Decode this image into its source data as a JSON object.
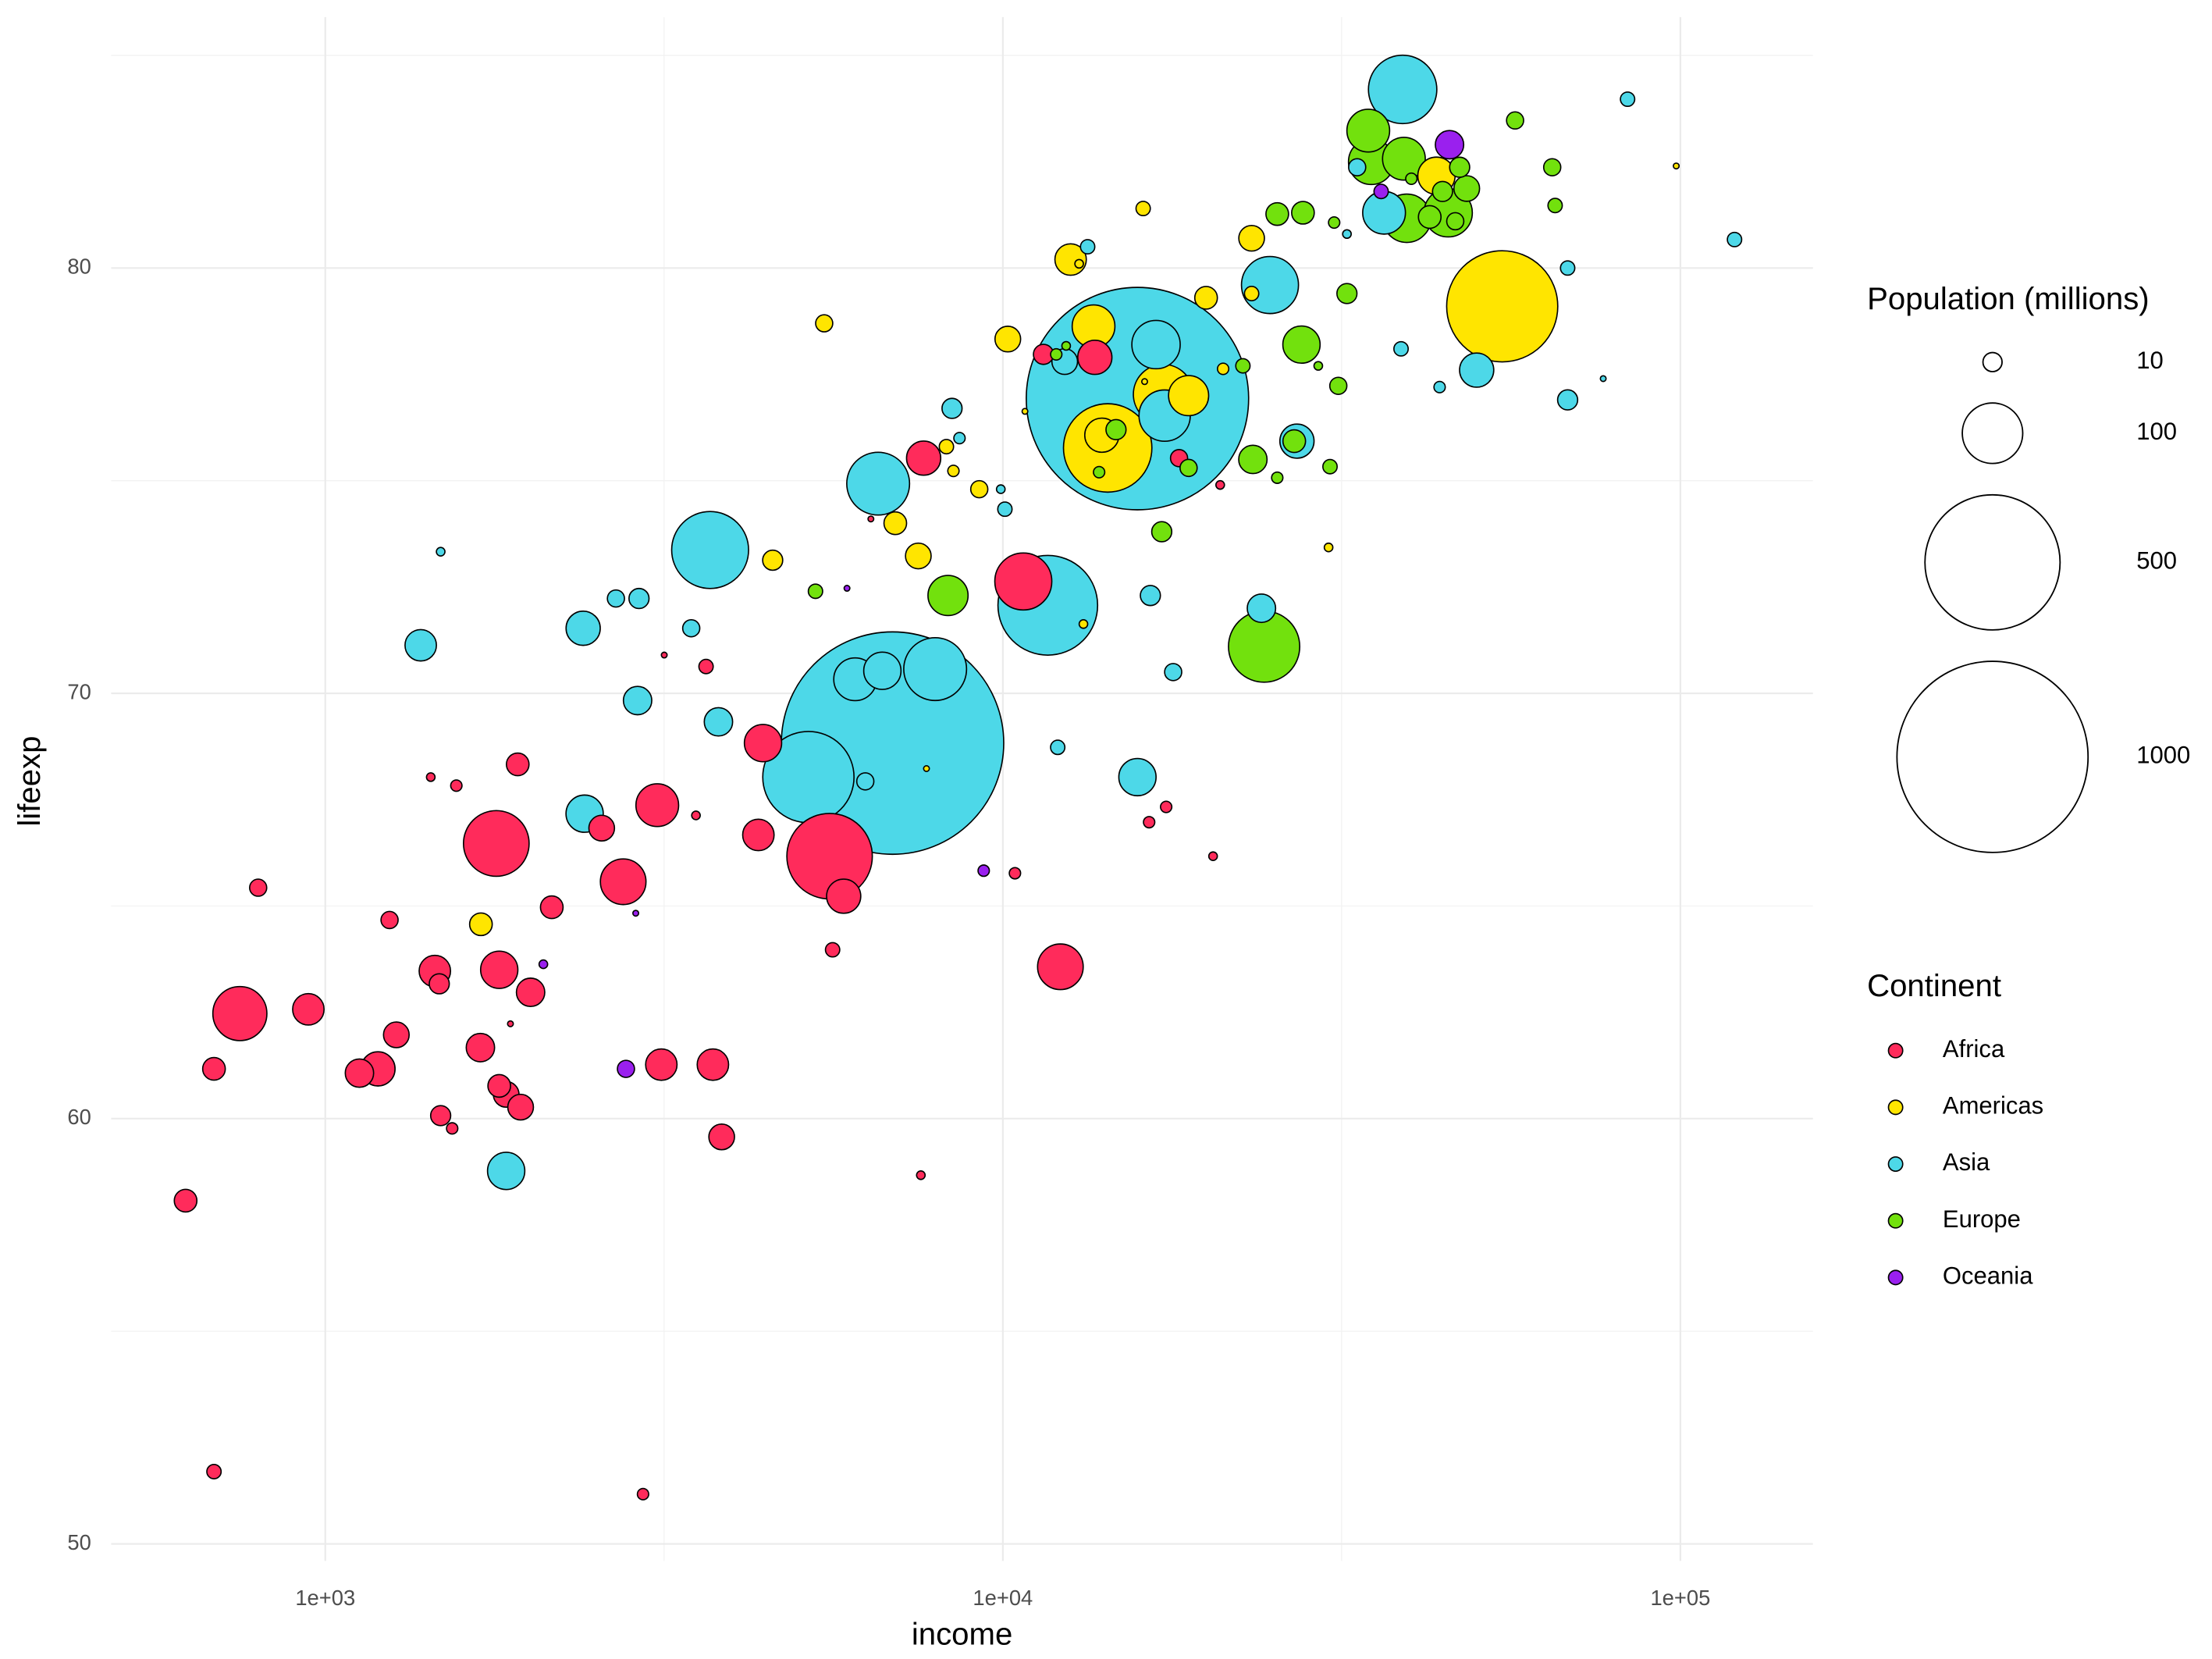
{
  "chart_data": {
    "type": "bubble",
    "x_label": "income",
    "y_label": "lifeexp",
    "x_log": true,
    "xlim": [
      483,
      156900
    ],
    "xticks": [
      {
        "value": 1000,
        "label": "1e+03"
      },
      {
        "value": 10000,
        "label": "1e+04"
      },
      {
        "value": 100000,
        "label": "1e+05"
      }
    ],
    "x_minor_grid": [
      3162,
      31623
    ],
    "ylim": [
      49.6,
      85.9
    ],
    "yticks": [
      50,
      60,
      70,
      80
    ],
    "y_minor_grid": [
      55,
      65,
      75,
      85
    ],
    "grid": true,
    "size_legend": {
      "title": "Population (millions)",
      "breaks": [
        10,
        100,
        500,
        1000
      ]
    },
    "color_legend_title": "Continent",
    "legend_position": "right",
    "series": [
      {
        "name": "Africa",
        "color": "#ff2b5b",
        "x": [
          622,
          685,
          685,
          748,
          796,
          944,
          1123,
          1196,
          1244,
          1273,
          1451,
          1473,
          1431,
          1480,
          1539,
          1561,
          1694,
          1788,
          1806,
          1806,
          1849,
          1876,
          1923,
          1942,
          2009,
          2159,
          2558,
          2752,
          2944,
          3090,
          3133,
          3164,
          3524,
          3647,
          3733,
          3846,
          4357,
          4426,
          5550,
          5607,
          5822,
          6386,
          7568,
          7640,
          10420,
          10720,
          11480,
          12160,
          13670,
          16440,
          17420,
          18200,
          20430,
          20930
        ],
        "values": [
          58.07,
          51.7,
          61.17,
          62.47,
          65.43,
          62.57,
          61.07,
          61.17,
          64.67,
          61.97,
          63.47,
          63.17,
          68.03,
          60.07,
          59.77,
          67.83,
          61.67,
          66.47,
          60.77,
          63.5,
          60.57,
          62.23,
          68.33,
          60.27,
          62.97,
          64.97,
          66.83,
          65.57,
          51.17,
          67.37,
          61.27,
          70.9,
          67.13,
          70.63,
          61.27,
          59.57,
          66.67,
          68.83,
          66.17,
          63.97,
          65.23,
          74.1,
          58.67,
          75.53,
          65.77,
          72.63,
          77.97,
          63.57,
          77.9,
          66.97,
          67.33,
          75.53,
          66.17,
          74.9
        ],
        "sizes": [
          14,
          5.6,
          14,
          80,
          8,
          27,
          22,
          32,
          8,
          18,
          27,
          11,
          2,
          11,
          3.5,
          3.5,
          22,
          118,
          14,
          38,
          18,
          0.9,
          14,
          18,
          22,
          14,
          18,
          57,
          3.5,
          50,
          27,
          0.9,
          2,
          5.6,
          27,
          18,
          27,
          38,
          200,
          5.6,
          32,
          0.9,
          2,
          32,
          3.5,
          89,
          11,
          57,
          32,
          3.5,
          3.5,
          8,
          2,
          2
        ]
      },
      {
        "name": "Americas",
        "color": "#ffe500",
        "x": [
          1697,
          4574,
          5449,
          6938,
          7503,
          7714,
          8255,
          8454,
          9230,
          10170,
          10780,
          12590,
          12960,
          13150,
          13610,
          14280,
          14000,
          16190,
          17250,
          18800,
          16110,
          19950,
          21140,
          23290,
          23290,
          30250,
          43650,
          54580,
          98600
        ],
        "values": [
          64.57,
          73.13,
          78.7,
          74.0,
          73.23,
          68.23,
          75.8,
          75.23,
          74.8,
          78.33,
          76.63,
          80.2,
          80.1,
          71.63,
          78.63,
          75.77,
          76.07,
          77.33,
          77.03,
          77.0,
          81.4,
          79.3,
          77.63,
          80.7,
          79.4,
          73.43,
          82.17,
          79.1,
          82.4
        ],
        "sizes": [
          14,
          11,
          8,
          14,
          18,
          0.9,
          5.6,
          3.5,
          8,
          18,
          0.9,
          27,
          2,
          2,
          50,
          214,
          32,
          0.9,
          98,
          44,
          5.6,
          14,
          3.5,
          18,
          5.6,
          2,
          38,
          338,
          0.9
        ]
      },
      {
        "name": "Asia",
        "color": "#4dd8e8",
        "x": [
          1383,
          1480,
          1849,
          2402,
          2414,
          2685,
          2904,
          2890,
          3468,
          3698,
          3804,
          5164,
          6053,
          6640,
          6266,
          6874,
          7945,
          6546,
          8414,
          8630,
          9930,
          10070,
          11650,
          12050,
          12340,
          13340,
          15800,
          15800,
          16510,
          16830,
          17330,
          17840,
          24790,
          24080,
          27170,
          32200,
          33340,
          36530,
          38910,
          38700,
          44120,
          50040,
          68170,
          68170,
          76930,
          83570,
          120200
        ],
        "values": [
          71.13,
          73.33,
          58.77,
          71.53,
          67.17,
          72.23,
          72.23,
          69.83,
          71.53,
          73.37,
          69.33,
          68.03,
          70.33,
          70.53,
          67.93,
          68.83,
          70.57,
          74.93,
          76.7,
          76.0,
          74.8,
          74.33,
          72.07,
          68.73,
          77.8,
          80.5,
          76.93,
          68.03,
          72.3,
          78.2,
          76.53,
          70.5,
          79.6,
          72.0,
          75.93,
          80.8,
          82.37,
          81.3,
          84.2,
          78.1,
          77.2,
          77.6,
          80.0,
          76.9,
          77.4,
          83.97,
          80.67
        ],
        "sizes": [
          27,
          2,
          38,
          32,
          38,
          8,
          11,
          22,
          8,
          162,
          22,
          228,
          50,
          38,
          8,
          1354,
          108,
          108,
          11,
          3.5,
          2,
          5.6,
          272,
          5.6,
          18,
          5.6,
          1354,
          38,
          11,
          64,
          72,
          8,
          89,
          22,
          32,
          2,
          8,
          50,
          128,
          5.6,
          3.5,
          32,
          5.6,
          11,
          0.9,
          5.6,
          5.6
        ]
      },
      {
        "name": "Europe",
        "color": "#72e10d",
        "x": [
          5290,
          8300,
          11990,
          12400,
          13870,
          14690,
          17160,
          18800,
          22610,
          23390,
          24300,
          25410,
          25410,
          26920,
          27730,
          27590,
          29210,
          30400,
          30830,
          31270,
          32200,
          34620,
          34980,
          39080,
          40080,
          39460,
          42660,
          44560,
          45420,
          46530,
          47230,
          48380,
          57020,
          64690,
          65330
        ],
        "values": [
          72.4,
          72.3,
          77.97,
          78.17,
          75.2,
          76.2,
          73.8,
          75.3,
          77.7,
          75.5,
          71.1,
          81.27,
          75.07,
          75.93,
          81.3,
          78.2,
          77.7,
          75.33,
          81.07,
          77.23,
          79.4,
          83.23,
          82.5,
          82.57,
          82.1,
          81.17,
          81.2,
          81.8,
          81.3,
          81.1,
          82.37,
          81.87,
          83.47,
          82.37,
          81.47
        ],
        "sizes": [
          5.6,
          44,
          3.5,
          2,
          3.5,
          11,
          11,
          8,
          5.6,
          22,
          139,
          14,
          3.5,
          14,
          14,
          38,
          2,
          5.6,
          3.5,
          8,
          11,
          50,
          57,
          50,
          3.5,
          64,
          14,
          11,
          64,
          8,
          11,
          18,
          8,
          8,
          5.6
        ]
      },
      {
        "name": "Oceania",
        "color": "#9a20ee",
        "x": [
          2098,
          2872,
          2778,
          5888,
          9370,
          36170,
          45630
        ],
        "values": [
          63.63,
          64.83,
          61.17,
          72.47,
          65.83,
          81.8,
          82.9
        ],
        "sizes": [
          2,
          0.9,
          8,
          0.9,
          3.5,
          5.6,
          22
        ]
      }
    ]
  }
}
